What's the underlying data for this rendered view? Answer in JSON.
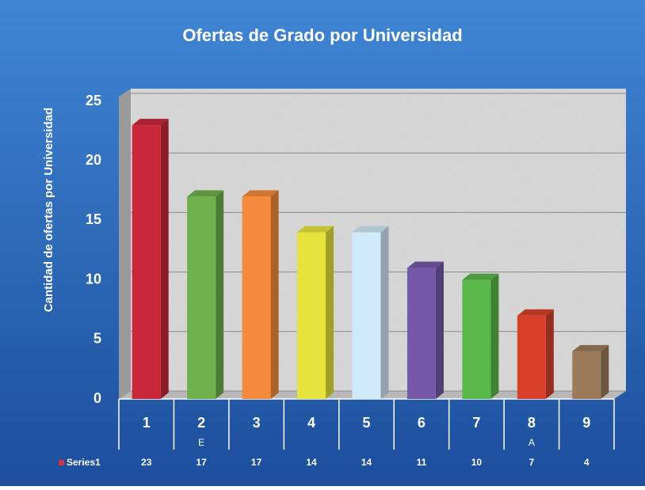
{
  "chart_data": {
    "type": "bar3d",
    "title": "Ofertas de Grado por Universidad",
    "y_label": "Cantidad de ofertas por Universidad",
    "categories": [
      "1",
      "2",
      "3",
      "4",
      "5",
      "6",
      "7",
      "8",
      "9"
    ],
    "category_notes": [
      null,
      "E",
      null,
      null,
      null,
      null,
      null,
      "A",
      null
    ],
    "series": [
      {
        "name": "Series1",
        "color": "#d03040",
        "colors": [
          "#c8283a",
          "#6fb04a",
          "#f58a3c",
          "#e6e43c",
          "#cfe9f8",
          "#7658a8",
          "#5bb84a",
          "#d8402a",
          "#9a7a58"
        ],
        "values": [
          23,
          17,
          17,
          14,
          14,
          11,
          10,
          7,
          4
        ]
      }
    ],
    "ylim": [
      0,
      25
    ],
    "yticks": [
      0,
      5,
      10,
      15,
      20,
      25
    ],
    "grid": true
  }
}
